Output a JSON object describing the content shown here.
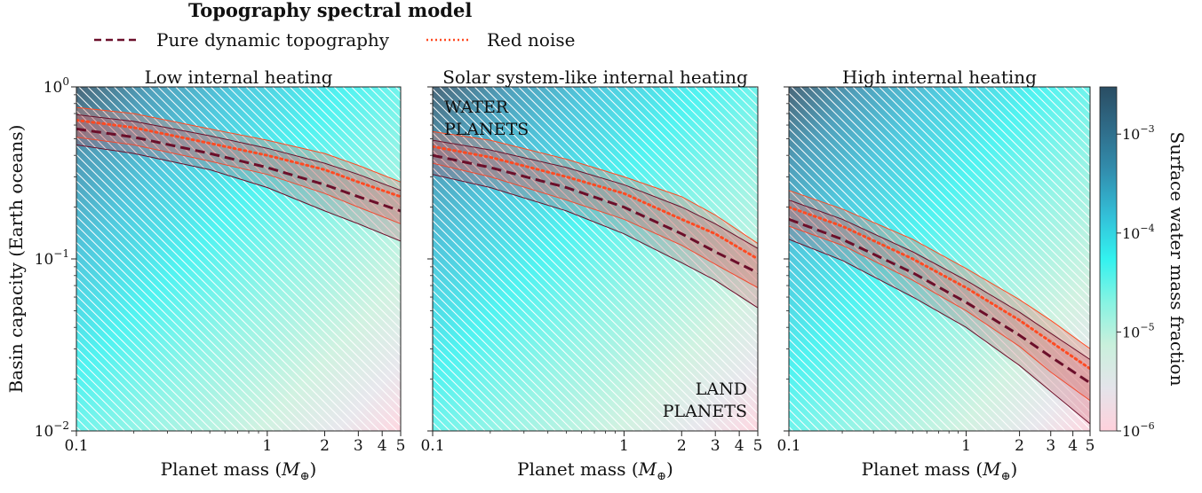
{
  "legend": {
    "title": "Topography spectral model",
    "entries": [
      {
        "label": "Pure dynamic topography",
        "color": "#6b0f2a",
        "style": "dashed"
      },
      {
        "label": "Red noise",
        "color": "#ff4a22",
        "style": "dotted"
      }
    ]
  },
  "colors": {
    "dynamic": "#6b0f2a",
    "rednoise": "#ff4a22",
    "band_fill": "#d85a5a",
    "colormap": [
      "#ffd1dc",
      "#e4e4ea",
      "#c9f0dc",
      "#86f3e2",
      "#33f2ef",
      "#33c0d8",
      "#3290b0",
      "#2f6d8a",
      "#2a4d63"
    ]
  },
  "annotations": {
    "water": [
      "WATER",
      "PLANETS"
    ],
    "land": [
      "LAND",
      "PLANETS"
    ]
  },
  "colorbar": {
    "label": "Surface water mass fraction",
    "ticks": [
      {
        "base": "10",
        "exp": "−3",
        "value": 0.001
      },
      {
        "base": "10",
        "exp": "−4",
        "value": 0.0001
      },
      {
        "base": "10",
        "exp": "−5",
        "value": 1e-05
      },
      {
        "base": "10",
        "exp": "−6",
        "value": 1e-06
      }
    ],
    "range": [
      1e-06,
      0.003
    ],
    "scale": "log"
  },
  "chart_data": [
    {
      "type": "line",
      "title": "Low internal heating",
      "xlabel": "Planet mass (M⊕)",
      "ylabel": "Basin capacity (Earth oceans)",
      "xscale": "log",
      "yscale": "log",
      "xlim": [
        0.1,
        5
      ],
      "ylim": [
        0.01,
        1
      ],
      "xticks": [
        "0.1",
        "1",
        "2",
        "3",
        "4",
        "5"
      ],
      "x": [
        0.1,
        0.2,
        0.5,
        1,
        2,
        3,
        5
      ],
      "series": [
        {
          "name": "Pure dynamic topography",
          "values": [
            0.57,
            0.51,
            0.41,
            0.34,
            0.27,
            0.23,
            0.19
          ],
          "low": [
            0.46,
            0.41,
            0.33,
            0.26,
            0.19,
            0.16,
            0.127
          ],
          "high": [
            0.69,
            0.63,
            0.52,
            0.44,
            0.36,
            0.31,
            0.25
          ]
        },
        {
          "name": "Red noise",
          "values": [
            0.64,
            0.58,
            0.47,
            0.4,
            0.33,
            0.28,
            0.23
          ],
          "low": [
            0.51,
            0.46,
            0.37,
            0.31,
            0.24,
            0.2,
            0.16
          ],
          "high": [
            0.76,
            0.7,
            0.57,
            0.49,
            0.41,
            0.35,
            0.28
          ]
        }
      ]
    },
    {
      "type": "line",
      "title": "Solar system-like internal heating",
      "xlabel": "Planet mass (M⊕)",
      "ylabel": "",
      "xscale": "log",
      "yscale": "log",
      "xlim": [
        0.1,
        5
      ],
      "ylim": [
        0.01,
        1
      ],
      "xticks": [
        "0.1",
        "1",
        "2",
        "3",
        "4",
        "5"
      ],
      "x": [
        0.1,
        0.2,
        0.5,
        1,
        2,
        3,
        5
      ],
      "series": [
        {
          "name": "Pure dynamic topography",
          "values": [
            0.4,
            0.34,
            0.26,
            0.2,
            0.14,
            0.11,
            0.083
          ],
          "low": [
            0.31,
            0.26,
            0.19,
            0.14,
            0.095,
            0.075,
            0.052
          ],
          "high": [
            0.49,
            0.43,
            0.34,
            0.27,
            0.2,
            0.16,
            0.115
          ]
        },
        {
          "name": "Red noise",
          "values": [
            0.45,
            0.39,
            0.3,
            0.24,
            0.17,
            0.14,
            0.1
          ],
          "low": [
            0.36,
            0.3,
            0.22,
            0.17,
            0.12,
            0.093,
            0.068
          ],
          "high": [
            0.55,
            0.49,
            0.38,
            0.3,
            0.23,
            0.18,
            0.123
          ]
        }
      ]
    },
    {
      "type": "line",
      "title": "High internal heating",
      "xlabel": "Planet mass (M⊕)",
      "ylabel": "",
      "xscale": "log",
      "yscale": "log",
      "xlim": [
        0.1,
        5
      ],
      "ylim": [
        0.01,
        1
      ],
      "xticks": [
        "0.1",
        "1",
        "2",
        "3",
        "4",
        "5"
      ],
      "x": [
        0.1,
        0.2,
        0.5,
        1,
        2,
        3,
        5
      ],
      "series": [
        {
          "name": "Pure dynamic topography",
          "values": [
            0.17,
            0.13,
            0.083,
            0.056,
            0.036,
            0.027,
            0.019
          ],
          "low": [
            0.13,
            0.098,
            0.06,
            0.04,
            0.024,
            0.017,
            0.011
          ],
          "high": [
            0.22,
            0.17,
            0.11,
            0.075,
            0.049,
            0.037,
            0.026
          ]
        },
        {
          "name": "Red noise",
          "values": [
            0.2,
            0.155,
            0.1,
            0.068,
            0.044,
            0.033,
            0.023
          ],
          "low": [
            0.155,
            0.12,
            0.075,
            0.05,
            0.031,
            0.022,
            0.015
          ],
          "high": [
            0.25,
            0.195,
            0.13,
            0.088,
            0.058,
            0.044,
            0.03
          ]
        }
      ]
    }
  ]
}
